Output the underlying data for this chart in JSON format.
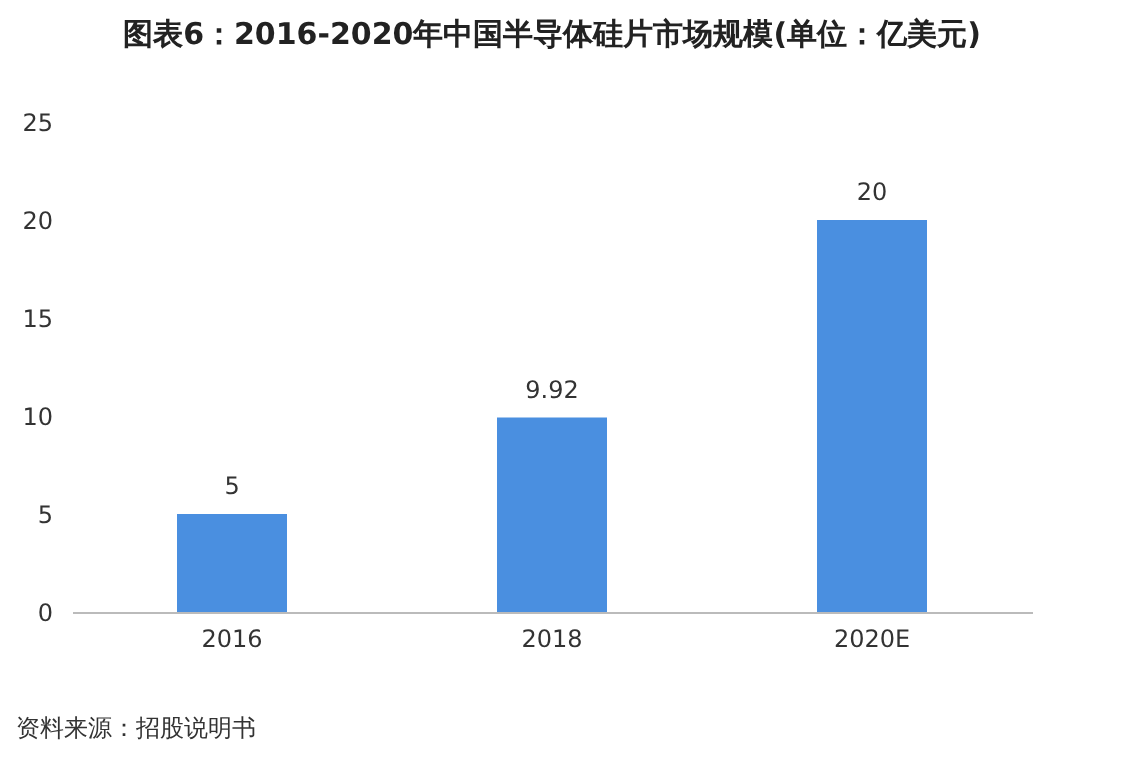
{
  "chart_data": {
    "type": "bar",
    "title": "图表6：2016-2020年中国半导体硅片市场规模(单位：亿美元)",
    "categories": [
      "2016",
      "2018",
      "2020E"
    ],
    "values": [
      5,
      9.92,
      20
    ],
    "color": "#4a8fe0",
    "ylim": [
      0,
      25
    ],
    "yticks": [
      0,
      5,
      10,
      15,
      20,
      25
    ],
    "grid": false,
    "data_labels": true,
    "annotations": [
      "资料来源：招股说明书"
    ]
  }
}
